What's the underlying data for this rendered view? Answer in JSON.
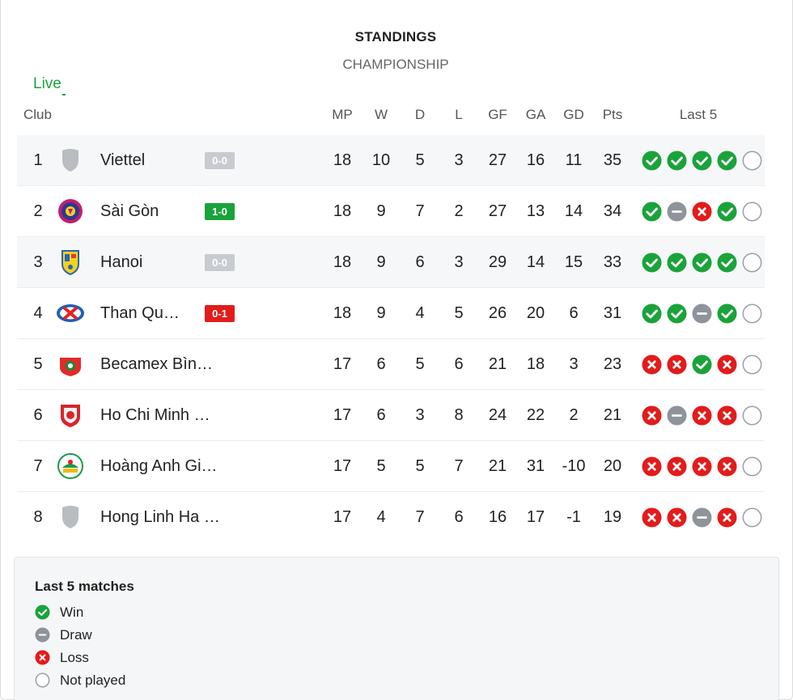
{
  "header": {
    "title": "STANDINGS",
    "subtitle": "CHAMPIONSHIP",
    "live_label": "Live"
  },
  "columns": {
    "club": "Club",
    "mp": "MP",
    "w": "W",
    "d": "D",
    "l": "L",
    "gf": "GF",
    "ga": "GA",
    "gd": "GD",
    "pts": "Pts",
    "last5": "Last 5"
  },
  "colors": {
    "win": "#1aa33a",
    "draw": "#8e949b",
    "loss": "#e31b1b",
    "live": "#1aa33a"
  },
  "rows": [
    {
      "rank": "1",
      "club": "Viettel",
      "logo": "shield-gray-icon",
      "score": "0-0",
      "score_state": "gray",
      "mp": "18",
      "w": "10",
      "d": "5",
      "l": "3",
      "gf": "27",
      "ga": "16",
      "gd": "11",
      "pts": "35",
      "last5": [
        "win",
        "win",
        "win",
        "win",
        "none"
      ]
    },
    {
      "rank": "2",
      "club": "Sài Gòn",
      "logo": "saigon-crest-icon",
      "score": "1-0",
      "score_state": "green",
      "mp": "18",
      "w": "9",
      "d": "7",
      "l": "2",
      "gf": "27",
      "ga": "13",
      "gd": "14",
      "pts": "34",
      "last5": [
        "win",
        "draw",
        "loss",
        "win",
        "none"
      ]
    },
    {
      "rank": "3",
      "club": "Hanoi",
      "logo": "hanoi-crest-icon",
      "score": "0-0",
      "score_state": "gray",
      "mp": "18",
      "w": "9",
      "d": "6",
      "l": "3",
      "gf": "29",
      "ga": "14",
      "gd": "15",
      "pts": "33",
      "last5": [
        "win",
        "win",
        "win",
        "win",
        "none"
      ]
    },
    {
      "rank": "4",
      "club": "Than Qu…",
      "logo": "than-quang-ninh-crest-icon",
      "score": "0-1",
      "score_state": "red",
      "mp": "18",
      "w": "9",
      "d": "4",
      "l": "5",
      "gf": "26",
      "ga": "20",
      "gd": "6",
      "pts": "31",
      "last5": [
        "win",
        "win",
        "draw",
        "win",
        "none"
      ]
    },
    {
      "rank": "5",
      "club": "Becamex Bìn…",
      "logo": "becamex-crest-icon",
      "score": "",
      "score_state": "",
      "mp": "17",
      "w": "6",
      "d": "5",
      "l": "6",
      "gf": "21",
      "ga": "18",
      "gd": "3",
      "pts": "23",
      "last5": [
        "loss",
        "loss",
        "win",
        "loss",
        "none"
      ]
    },
    {
      "rank": "6",
      "club": "Ho Chi Minh …",
      "logo": "hcmc-crest-icon",
      "score": "",
      "score_state": "",
      "mp": "17",
      "w": "6",
      "d": "3",
      "l": "8",
      "gf": "24",
      "ga": "22",
      "gd": "2",
      "pts": "21",
      "last5": [
        "loss",
        "draw",
        "loss",
        "loss",
        "none"
      ]
    },
    {
      "rank": "7",
      "club": "Hoàng Anh Gi…",
      "logo": "hagl-crest-icon",
      "score": "",
      "score_state": "",
      "mp": "17",
      "w": "5",
      "d": "5",
      "l": "7",
      "gf": "21",
      "ga": "31",
      "gd": "-10",
      "pts": "20",
      "last5": [
        "loss",
        "loss",
        "loss",
        "loss",
        "none"
      ]
    },
    {
      "rank": "8",
      "club": "Hong Linh Ha …",
      "logo": "shield-gray-icon",
      "score": "",
      "score_state": "",
      "mp": "17",
      "w": "4",
      "d": "7",
      "l": "6",
      "gf": "16",
      "ga": "17",
      "gd": "-1",
      "pts": "19",
      "last5": [
        "loss",
        "loss",
        "draw",
        "loss",
        "none"
      ]
    }
  ],
  "legend": {
    "title": "Last 5 matches",
    "items": [
      {
        "type": "win",
        "label": "Win"
      },
      {
        "type": "draw",
        "label": "Draw"
      },
      {
        "type": "loss",
        "label": "Loss"
      },
      {
        "type": "none",
        "label": "Not played"
      }
    ]
  }
}
